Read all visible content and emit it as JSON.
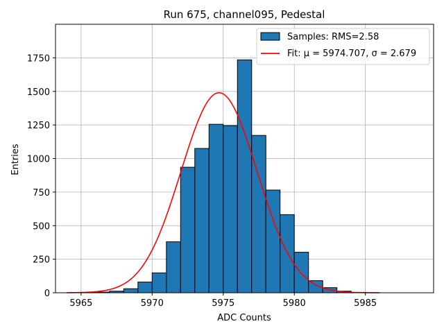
{
  "chart_data": {
    "type": "bar",
    "title": "Run 675, channel095, Pedestal",
    "xlabel": "ADC Counts",
    "ylabel": "Entries",
    "xlim": [
      5963.2,
      5989.8
    ],
    "ylim": [
      0,
      2000
    ],
    "xticks": [
      5965,
      5970,
      5975,
      5980,
      5985
    ],
    "yticks": [
      0,
      250,
      500,
      750,
      1000,
      1250,
      1500,
      1750
    ],
    "grid": true,
    "legend_position": "top-right",
    "colors": {
      "bars": "#1f77b4",
      "bar_edge": "#000000",
      "fit": "#ff0000"
    },
    "bin_width": 1,
    "series": [
      {
        "name": "Samples: RMS=2.58",
        "kind": "histogram",
        "bin_lefts": [
          5965,
          5966,
          5967,
          5968,
          5969,
          5970,
          5971,
          5972,
          5973,
          5974,
          5975,
          5976,
          5977,
          5978,
          5979,
          5980,
          5981,
          5982,
          5983
        ],
        "values": [
          2,
          5,
          12,
          30,
          80,
          148,
          380,
          935,
          1075,
          1255,
          1245,
          1735,
          1172,
          765,
          582,
          302,
          90,
          38,
          12
        ]
      },
      {
        "name": "Fit: μ = 5974.707, σ = 2.679",
        "kind": "gaussian",
        "mu": 5974.707,
        "sigma": 2.679,
        "amplitude": 1490,
        "x_range": [
          5964,
          5986
        ]
      }
    ]
  }
}
